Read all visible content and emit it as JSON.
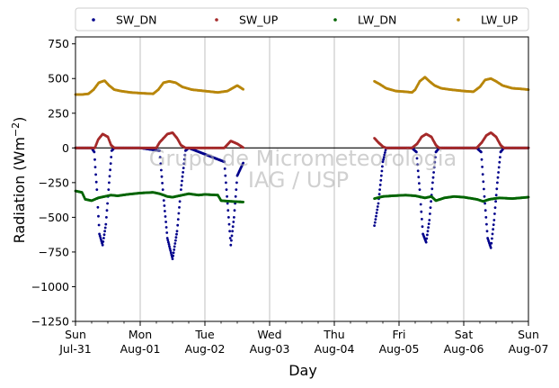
{
  "chart_data": {
    "type": "scatter",
    "title": "",
    "xlabel": "Day",
    "ylabel": "Radiation (Wm",
    "ylabel_sup": "−2",
    "ylabel_close": ")",
    "ylim": [
      -1250,
      800
    ],
    "xlim": [
      0,
      7
    ],
    "y_ticks": [
      750,
      500,
      250,
      0,
      -250,
      -500,
      -750,
      -1000,
      -1250
    ],
    "y_tick_labels": [
      "750",
      "500",
      "250",
      "0",
      "−250",
      "−500",
      "−750",
      "−1000",
      "−1250"
    ],
    "x_ticks": [
      {
        "x": 0,
        "weekday": "Sun",
        "date": "Jul-31"
      },
      {
        "x": 1,
        "weekday": "Mon",
        "date": "Aug-01"
      },
      {
        "x": 2,
        "weekday": "Tue",
        "date": "Aug-02"
      },
      {
        "x": 3,
        "weekday": "Wed",
        "date": "Aug-03"
      },
      {
        "x": 4,
        "weekday": "Thu",
        "date": "Aug-04"
      },
      {
        "x": 5,
        "weekday": "Fri",
        "date": "Aug-05"
      },
      {
        "x": 6,
        "weekday": "Sat",
        "date": "Aug-06"
      },
      {
        "x": 7,
        "weekday": "Sun",
        "date": "Aug-07"
      }
    ],
    "grid": "vertical",
    "legend_position": "top",
    "watermark": [
      "Grupo de Micrometeorologia",
      "IAG / USP"
    ],
    "data_gap": [
      2.65,
      4.6
    ],
    "series": [
      {
        "name": "SW_DN",
        "color": "#00008b",
        "points": [
          [
            0.0,
            0
          ],
          [
            0.25,
            0
          ],
          [
            0.29,
            -30
          ],
          [
            0.33,
            -300
          ],
          [
            0.37,
            -620
          ],
          [
            0.42,
            -700
          ],
          [
            0.47,
            -550
          ],
          [
            0.52,
            -250
          ],
          [
            0.56,
            -20
          ],
          [
            0.6,
            0
          ],
          [
            1.0,
            0
          ],
          [
            1.3,
            -20
          ],
          [
            1.35,
            -300
          ],
          [
            1.42,
            -650
          ],
          [
            1.5,
            -800
          ],
          [
            1.57,
            -600
          ],
          [
            1.63,
            -300
          ],
          [
            1.7,
            -20
          ],
          [
            1.75,
            0
          ],
          [
            2.3,
            -100
          ],
          [
            2.35,
            -400
          ],
          [
            2.4,
            -700
          ],
          [
            2.45,
            -500
          ],
          [
            2.5,
            -200
          ],
          [
            2.55,
            -150
          ],
          [
            2.6,
            -100
          ],
          [
            4.62,
            -560
          ],
          [
            4.68,
            -400
          ],
          [
            4.75,
            -100
          ],
          [
            4.8,
            0
          ],
          [
            5.2,
            0
          ],
          [
            5.27,
            -30
          ],
          [
            5.32,
            -300
          ],
          [
            5.37,
            -620
          ],
          [
            5.42,
            -680
          ],
          [
            5.47,
            -520
          ],
          [
            5.52,
            -250
          ],
          [
            5.57,
            -30
          ],
          [
            5.62,
            0
          ],
          [
            6.2,
            0
          ],
          [
            6.27,
            -30
          ],
          [
            6.32,
            -350
          ],
          [
            6.37,
            -650
          ],
          [
            6.42,
            -720
          ],
          [
            6.47,
            -520
          ],
          [
            6.52,
            -250
          ],
          [
            6.57,
            -30
          ],
          [
            6.62,
            0
          ],
          [
            7.0,
            0
          ]
        ]
      },
      {
        "name": "SW_UP",
        "color": "#a52a2a",
        "points": [
          [
            0.0,
            0
          ],
          [
            0.3,
            0
          ],
          [
            0.35,
            60
          ],
          [
            0.42,
            100
          ],
          [
            0.5,
            80
          ],
          [
            0.55,
            20
          ],
          [
            0.6,
            0
          ],
          [
            1.0,
            0
          ],
          [
            1.25,
            0
          ],
          [
            1.3,
            40
          ],
          [
            1.42,
            100
          ],
          [
            1.5,
            110
          ],
          [
            1.57,
            70
          ],
          [
            1.63,
            20
          ],
          [
            1.7,
            0
          ],
          [
            2.3,
            0
          ],
          [
            2.4,
            50
          ],
          [
            2.5,
            30
          ],
          [
            2.6,
            0
          ],
          [
            4.62,
            70
          ],
          [
            4.68,
            40
          ],
          [
            4.75,
            10
          ],
          [
            4.8,
            0
          ],
          [
            5.2,
            0
          ],
          [
            5.28,
            30
          ],
          [
            5.35,
            80
          ],
          [
            5.42,
            100
          ],
          [
            5.5,
            80
          ],
          [
            5.57,
            20
          ],
          [
            5.62,
            0
          ],
          [
            6.2,
            0
          ],
          [
            6.28,
            40
          ],
          [
            6.35,
            90
          ],
          [
            6.42,
            110
          ],
          [
            6.5,
            80
          ],
          [
            6.57,
            20
          ],
          [
            6.62,
            0
          ],
          [
            7.0,
            0
          ]
        ]
      },
      {
        "name": "LW_DN",
        "color": "#006400",
        "points": [
          [
            0.0,
            -310
          ],
          [
            0.1,
            -320
          ],
          [
            0.15,
            -370
          ],
          [
            0.25,
            -380
          ],
          [
            0.35,
            -360
          ],
          [
            0.45,
            -350
          ],
          [
            0.55,
            -340
          ],
          [
            0.65,
            -345
          ],
          [
            0.8,
            -335
          ],
          [
            1.0,
            -325
          ],
          [
            1.2,
            -320
          ],
          [
            1.3,
            -330
          ],
          [
            1.42,
            -350
          ],
          [
            1.5,
            -355
          ],
          [
            1.6,
            -345
          ],
          [
            1.75,
            -330
          ],
          [
            1.9,
            -340
          ],
          [
            2.0,
            -335
          ],
          [
            2.2,
            -340
          ],
          [
            2.25,
            -380
          ],
          [
            2.4,
            -385
          ],
          [
            2.6,
            -390
          ],
          [
            4.62,
            -365
          ],
          [
            4.75,
            -350
          ],
          [
            4.9,
            -345
          ],
          [
            5.1,
            -340
          ],
          [
            5.25,
            -345
          ],
          [
            5.4,
            -360
          ],
          [
            5.5,
            -350
          ],
          [
            5.57,
            -380
          ],
          [
            5.7,
            -360
          ],
          [
            5.85,
            -350
          ],
          [
            6.0,
            -355
          ],
          [
            6.2,
            -370
          ],
          [
            6.3,
            -385
          ],
          [
            6.4,
            -370
          ],
          [
            6.55,
            -360
          ],
          [
            6.75,
            -365
          ],
          [
            7.0,
            -355
          ]
        ]
      },
      {
        "name": "LW_UP",
        "color": "#b8860b",
        "points": [
          [
            0.0,
            385
          ],
          [
            0.1,
            385
          ],
          [
            0.2,
            390
          ],
          [
            0.28,
            420
          ],
          [
            0.36,
            470
          ],
          [
            0.45,
            485
          ],
          [
            0.52,
            450
          ],
          [
            0.6,
            420
          ],
          [
            0.7,
            410
          ],
          [
            0.85,
            400
          ],
          [
            1.0,
            395
          ],
          [
            1.2,
            390
          ],
          [
            1.28,
            420
          ],
          [
            1.36,
            470
          ],
          [
            1.45,
            480
          ],
          [
            1.55,
            470
          ],
          [
            1.65,
            440
          ],
          [
            1.8,
            420
          ],
          [
            2.0,
            410
          ],
          [
            2.2,
            400
          ],
          [
            2.35,
            410
          ],
          [
            2.5,
            450
          ],
          [
            2.6,
            420
          ],
          [
            4.62,
            480
          ],
          [
            4.7,
            460
          ],
          [
            4.8,
            430
          ],
          [
            4.95,
            410
          ],
          [
            5.1,
            405
          ],
          [
            5.2,
            400
          ],
          [
            5.25,
            420
          ],
          [
            5.32,
            480
          ],
          [
            5.4,
            510
          ],
          [
            5.47,
            480
          ],
          [
            5.55,
            450
          ],
          [
            5.65,
            430
          ],
          [
            5.8,
            420
          ],
          [
            6.0,
            410
          ],
          [
            6.15,
            405
          ],
          [
            6.25,
            440
          ],
          [
            6.33,
            490
          ],
          [
            6.42,
            500
          ],
          [
            6.5,
            480
          ],
          [
            6.6,
            450
          ],
          [
            6.75,
            430
          ],
          [
            6.9,
            425
          ],
          [
            7.0,
            420
          ]
        ]
      }
    ]
  }
}
